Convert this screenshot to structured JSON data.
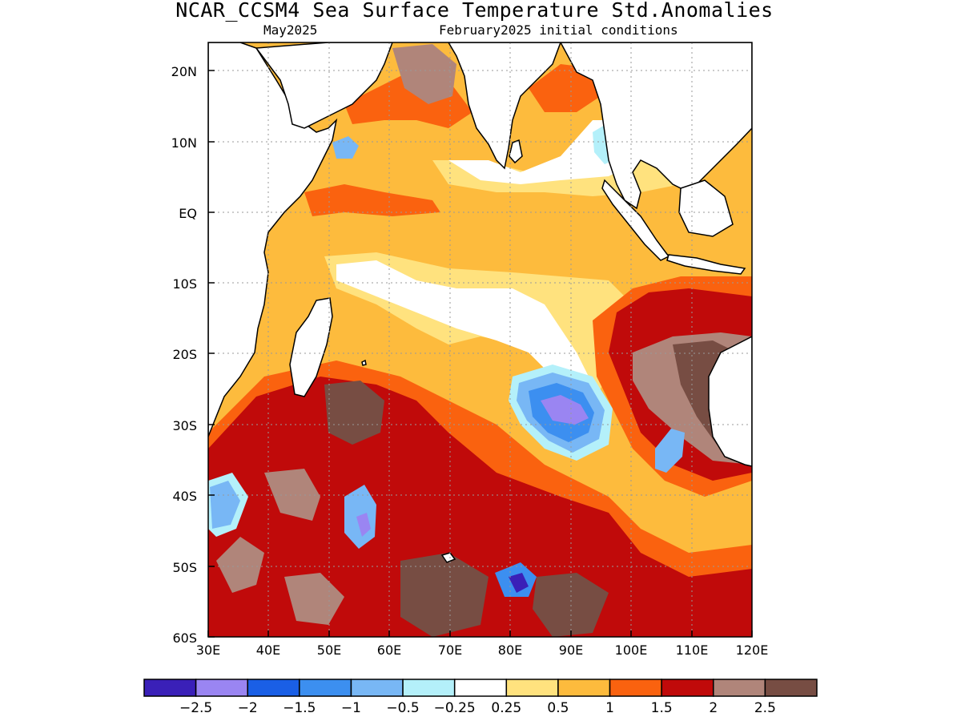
{
  "title": "NCAR_CCSM4 Sea Surface Temperature Std.Anomalies",
  "subtitle_left": "May2025",
  "subtitle_right": "February2025 initial conditions",
  "axes": {
    "lon_labels": [
      "30E",
      "40E",
      "50E",
      "60E",
      "70E",
      "80E",
      "90E",
      "100E",
      "110E",
      "120E"
    ],
    "lat_labels": [
      "20N",
      "10N",
      "EQ",
      "10S",
      "20S",
      "30S",
      "40S",
      "50S",
      "60S"
    ]
  },
  "colorbar": {
    "colors": [
      "#3a20b8",
      "#9a85f2",
      "#1a5fe6",
      "#3c8ff0",
      "#78b7f5",
      "#b4f0fa",
      "#ffffff",
      "#ffe27e",
      "#fdbb3d",
      "#fa620f",
      "#c00a0a",
      "#b0857a",
      "#774d43"
    ],
    "labels": [
      "−2.5",
      "−2",
      "−1.5",
      "−1",
      "−0.5",
      "−0.25",
      "0.25",
      "0.5",
      "1",
      "1.5",
      "2",
      "2.5"
    ]
  },
  "legend_colors": {
    "ocean_default": "#fdbb3d",
    "land": "#ffffff",
    "coast": "#000000"
  }
}
